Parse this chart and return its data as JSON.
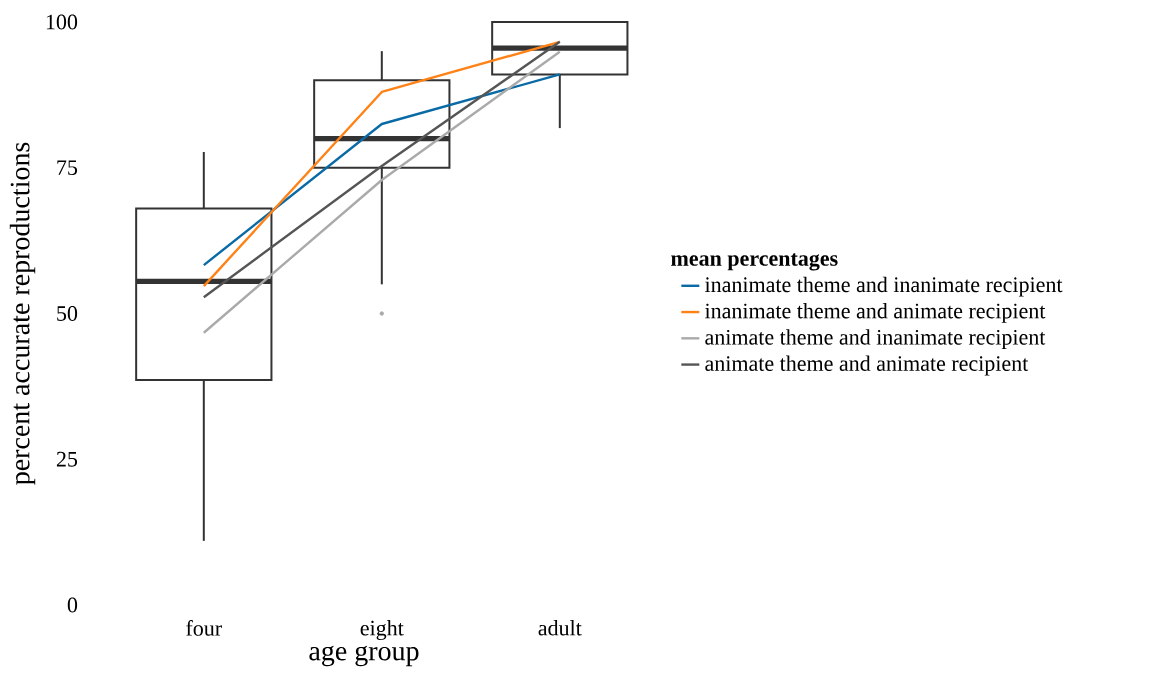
{
  "chart_data": {
    "type": "box",
    "xlabel": "age group",
    "ylabel": "percent accurate reproductions",
    "legend_title": "mean percentages",
    "legend": "right",
    "categories": [
      "four",
      "eight",
      "adult"
    ],
    "ylim": [
      0,
      100
    ],
    "yticks": [
      0,
      25,
      50,
      75,
      100
    ],
    "color": "#333333",
    "boxes": [
      {
        "low": 11,
        "q1": 38.6,
        "median": 55.5,
        "q3": 68,
        "high": 77.7
      },
      {
        "low": 55,
        "q1": 75,
        "median": 80,
        "q3": 90,
        "high": 95,
        "outliers": [
          50
        ]
      },
      {
        "low": 81.8,
        "q1": 91,
        "median": 95.5,
        "q3": 100,
        "high": 100
      }
    ],
    "series": [
      {
        "type": "line",
        "name": "inanimate theme and inanimate recipient",
        "color": "#0a6aa6",
        "values": [
          58.3,
          82.5,
          91
        ]
      },
      {
        "type": "line",
        "name": "inanimate theme and animate recipient",
        "color": "#ff8217",
        "values": [
          54.7,
          88,
          96.6
        ]
      },
      {
        "type": "line",
        "name": "animate theme and inanimate recipient",
        "color": "#aaaaaa",
        "values": [
          46.7,
          72.9,
          94.9
        ]
      },
      {
        "type": "line",
        "name": "animate theme and animate recipient",
        "color": "#555555",
        "values": [
          52.8,
          75.3,
          96.6
        ]
      }
    ]
  }
}
